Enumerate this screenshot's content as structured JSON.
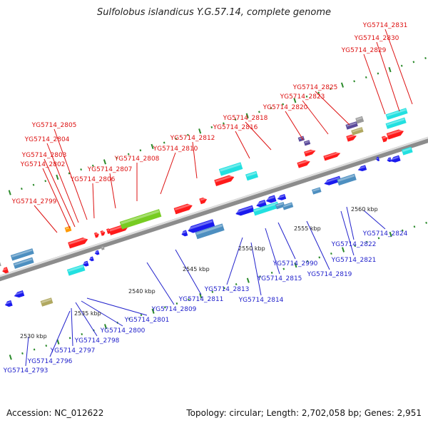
{
  "title": "Sulfolobus islandicus Y.G.57.14, complete genome",
  "footer": {
    "accession": "Accession: NC_012622",
    "summary": "Topology: circular; Length: 2,702,058 bp; Genes: 2,951"
  },
  "colors": {
    "backbone": "#8c8c8c",
    "tick": "#2a8a2a",
    "label_top": "#dd1111",
    "label_bottom": "#2222cc",
    "red_gene": "#ff1a1a",
    "blue_gene": "#1a1aee",
    "cyan_gene": "#22e0e0",
    "steel_gene": "#4d8fc0",
    "green_gene": "#77cc22",
    "orange_gene": "#ff9900",
    "olive_gene": "#b0a860",
    "gray_gene": "#999999",
    "purple_gene": "#5a4a9a"
  },
  "scale": {
    "labels": [
      "2530 kbp",
      "2535 kbp",
      "2540 kbp",
      "2545 kbp",
      "2550 kbp",
      "2555 kbp",
      "2560 kbp"
    ]
  },
  "top_labels": [
    "YG5714_2831",
    "YG5714_2830",
    "YG5714_2829",
    "YG5714_2825",
    "YG5714_2823",
    "YG5714_2820",
    "YG5714_2818",
    "YG5714_2816",
    "YG5714_2812",
    "YG5714_2810",
    "YG5714_2808",
    "YG5714_2807",
    "YG5714_2806",
    "YG5714_2805",
    "YG5714_2804",
    "YG5714_2803",
    "YG5714_2802",
    "YG5714_2799"
  ],
  "bottom_labels": [
    "YG5714_2824",
    "YG5714_2822",
    "YG5714_2821",
    "YG5714_2819",
    "YG5714_2990",
    "YG5714_2815",
    "YG5714_2813",
    "YG5714_2814",
    "YG5714_2811",
    "YG5714_2809",
    "YG5714_2801",
    "YG5714_2800",
    "YG5714_2798",
    "YG5714_2797",
    "YG5714_2796",
    "YG5714_2793"
  ]
}
